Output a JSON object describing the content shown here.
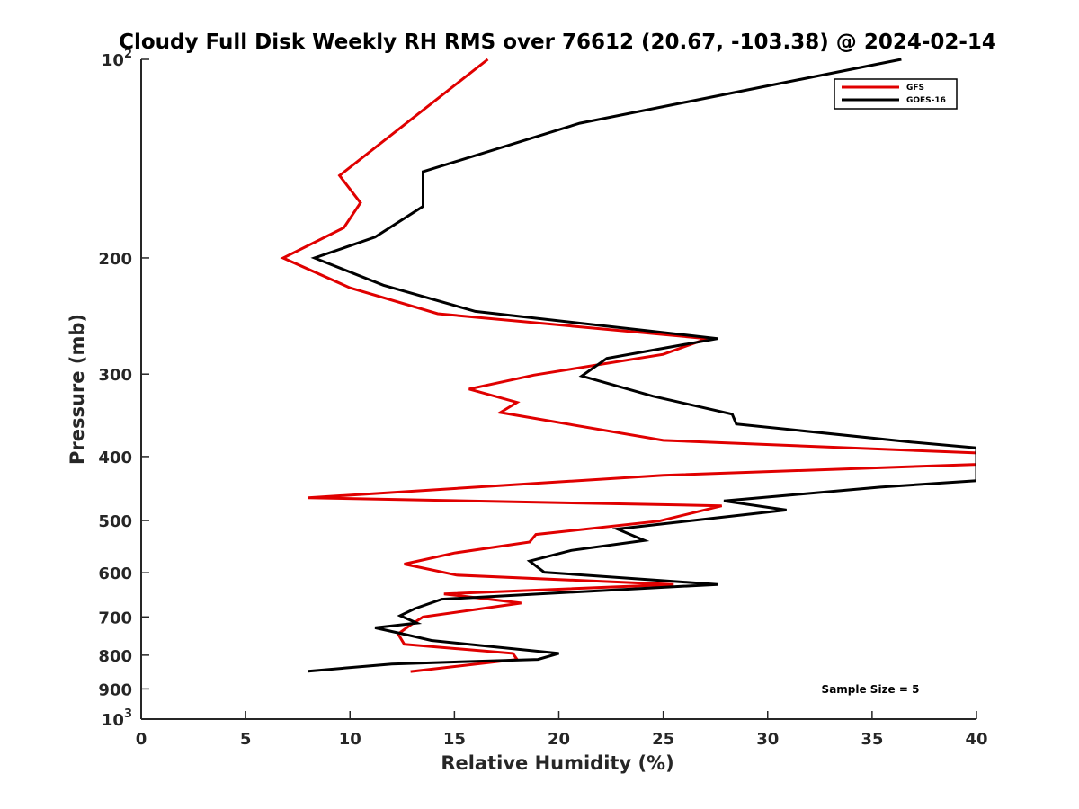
{
  "chart_data": {
    "type": "line",
    "title": "Cloudy Full Disk Weekly RH RMS over 76612 (20.67, -103.38) @ 2024-02-14",
    "xlabel": "Relative Humidity (%)",
    "ylabel": "Pressure (mb)",
    "xlim": [
      0,
      40
    ],
    "ylim": [
      100,
      1000
    ],
    "y_scale": "log",
    "y_reversed": true,
    "x_ticks": [
      0,
      5,
      10,
      15,
      20,
      25,
      30,
      35,
      40
    ],
    "y_ticks": [
      {
        "value": 100,
        "label": "10",
        "sup": "2"
      },
      {
        "value": 200,
        "label": "200"
      },
      {
        "value": 300,
        "label": "300"
      },
      {
        "value": 400,
        "label": "400"
      },
      {
        "value": 500,
        "label": "500"
      },
      {
        "value": 600,
        "label": "600"
      },
      {
        "value": 700,
        "label": "700"
      },
      {
        "value": 800,
        "label": "800"
      },
      {
        "value": 900,
        "label": "900"
      },
      {
        "value": 1000,
        "label": "10",
        "sup": "3"
      }
    ],
    "legend_position": "top-right",
    "annotation": "Sample Size = 5",
    "series": [
      {
        "name": "GFS",
        "color": "#e00000",
        "points": [
          [
            16.6,
            100
          ],
          [
            9.5,
            150
          ],
          [
            10.5,
            165
          ],
          [
            9.7,
            180
          ],
          [
            6.8,
            200
          ],
          [
            10.0,
            222
          ],
          [
            14.2,
            243
          ],
          [
            27.1,
            265
          ],
          [
            25.0,
            280
          ],
          [
            18.8,
            301
          ],
          [
            15.7,
            316
          ],
          [
            18.0,
            331
          ],
          [
            17.2,
            343
          ],
          [
            25.0,
            378
          ],
          [
            40.0,
            395
          ],
          [
            40.0,
            411
          ],
          [
            25.0,
            427
          ],
          [
            8.0,
            462
          ],
          [
            27.8,
            475
          ],
          [
            24.8,
            501
          ],
          [
            18.9,
            525
          ],
          [
            18.6,
            539
          ],
          [
            15.0,
            560
          ],
          [
            12.6,
            582
          ],
          [
            15.1,
            605
          ],
          [
            25.5,
            625
          ],
          [
            14.5,
            646
          ],
          [
            18.2,
            667
          ],
          [
            13.5,
            700
          ],
          [
            12.9,
            720
          ],
          [
            12.3,
            743
          ],
          [
            12.6,
            770
          ],
          [
            17.8,
            795
          ],
          [
            18.0,
            812
          ],
          [
            12.9,
            847
          ]
        ]
      },
      {
        "name": "GOES-16",
        "color": "#000000",
        "points": [
          [
            36.4,
            100
          ],
          [
            21.0,
            125
          ],
          [
            13.5,
            148
          ],
          [
            13.5,
            167
          ],
          [
            11.2,
            186
          ],
          [
            8.3,
            200
          ],
          [
            11.6,
            220
          ],
          [
            16.0,
            241
          ],
          [
            27.6,
            265
          ],
          [
            22.3,
            284
          ],
          [
            21.1,
            302
          ],
          [
            24.5,
            324
          ],
          [
            28.3,
            345
          ],
          [
            28.5,
            357
          ],
          [
            36.8,
            380
          ],
          [
            40.0,
            388
          ],
          [
            40.0,
            435
          ],
          [
            35.4,
            445
          ],
          [
            27.9,
            467
          ],
          [
            30.9,
            482
          ],
          [
            22.8,
            515
          ],
          [
            24.1,
            536
          ],
          [
            20.6,
            555
          ],
          [
            18.6,
            576
          ],
          [
            19.3,
            599
          ],
          [
            27.6,
            625
          ],
          [
            21.5,
            640
          ],
          [
            14.4,
            658
          ],
          [
            13.1,
            680
          ],
          [
            12.4,
            697
          ],
          [
            13.2,
            715
          ],
          [
            11.2,
            727
          ],
          [
            12.8,
            746
          ],
          [
            13.9,
            760
          ],
          [
            20.0,
            795
          ],
          [
            19.0,
            812
          ],
          [
            12.0,
            825
          ],
          [
            8.0,
            846
          ]
        ]
      }
    ]
  }
}
